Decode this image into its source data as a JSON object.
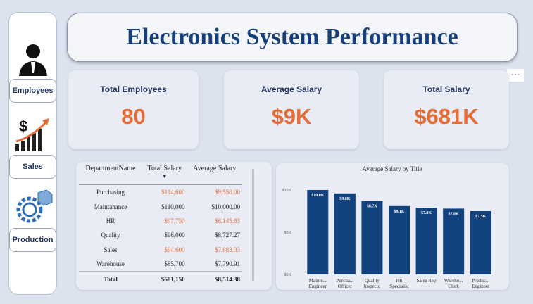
{
  "header": {
    "title": "Electronics System Performance"
  },
  "nav": [
    "Employees",
    "Sales",
    "Production"
  ],
  "kpis": [
    {
      "label": "Total Employees",
      "value": "80"
    },
    {
      "label": "Average Salary",
      "value": "$9K"
    },
    {
      "label": "Total Salary",
      "value": "$681K"
    }
  ],
  "table": {
    "columns": [
      "DepartmentName",
      "Total Salary",
      "Average Salary"
    ],
    "rows": [
      [
        "Purchasing",
        "$114,600",
        "$9,550.00"
      ],
      [
        "Maintanance",
        "$110,000",
        "$10,000.00"
      ],
      [
        "HR",
        "$97,750",
        "$8,145.83"
      ],
      [
        "Quality",
        "$96,000",
        "$8,727.27"
      ],
      [
        "Sales",
        "$94,600",
        "$7,883.33"
      ],
      [
        "Warehouse",
        "$85,700",
        "$7,790.91"
      ]
    ],
    "highlight": [
      true,
      false,
      true,
      false,
      true,
      false
    ],
    "total": [
      "Total",
      "$681,150",
      "$8,514.38"
    ]
  },
  "chart_data": {
    "type": "bar",
    "title": "Average Salary by Title",
    "categories": [
      "Mainte...\nEngineer",
      "Purcha...\nOfficer",
      "Quality\nInspecto",
      "HR\nSpecialist",
      "Sales Rep",
      "Wareho...\nClerk",
      "Produc...\nEngineer"
    ],
    "values": [
      10000,
      9600,
      8700,
      8100,
      7900,
      7800,
      7500
    ],
    "value_labels": [
      "$10.0K",
      "$9.6K",
      "$8.7K",
      "$8.1K",
      "$7.9K",
      "$7.8K",
      "$7.5K"
    ],
    "color": "#12427e",
    "ylim": [
      0,
      10000
    ],
    "yticks": [
      {
        "value": 0,
        "label": "$0K"
      },
      {
        "value": 5000,
        "label": "$5K"
      },
      {
        "value": 10000,
        "label": "$10K"
      }
    ]
  }
}
